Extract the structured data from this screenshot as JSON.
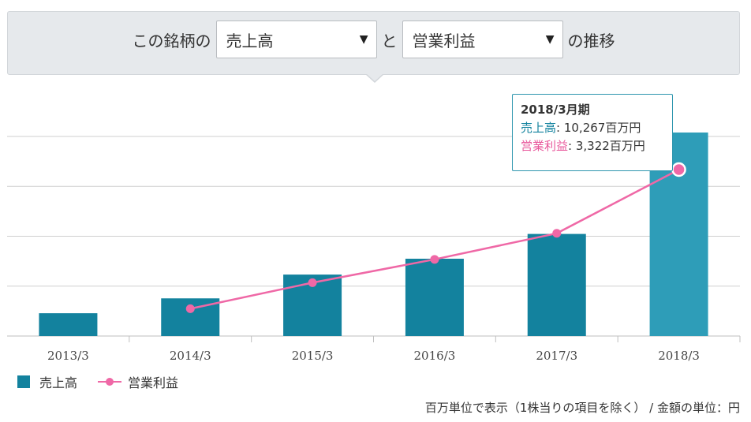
{
  "selector": {
    "prefix": "この銘柄の",
    "select1_value": "売上高",
    "connector": "と",
    "select2_value": "営業利益",
    "suffix": "の推移",
    "arrow": "▼"
  },
  "chart_data": {
    "type": "bar",
    "categories": [
      "2013/3",
      "2014/3",
      "2015/3",
      "2016/3",
      "2017/3",
      "2018/3"
    ],
    "series": [
      {
        "name": "売上高",
        "type": "bar",
        "color": "#13829e",
        "highlight_color": "#2e9db8",
        "values": [
          1150,
          1900,
          3100,
          3900,
          5150,
          10267
        ]
      },
      {
        "name": "営業利益",
        "type": "line",
        "color": "#ef68a6",
        "values": [
          null,
          545,
          1065,
          1530,
          2050,
          3322
        ]
      }
    ],
    "highlight_index": 5,
    "legend_position": "bottom-left",
    "grid": true
  },
  "tooltip": {
    "title": "2018/3月期",
    "s1_label": "売上高",
    "s1_value": ": 10,267百万円",
    "s2_label": "営業利益",
    "s2_value": ": 3,322百万円"
  },
  "legend": {
    "s1": "売上高",
    "s2": "営業利益"
  },
  "footnote": "百万単位で表示（1株当りの項目を除く） / 金額の単位：円"
}
